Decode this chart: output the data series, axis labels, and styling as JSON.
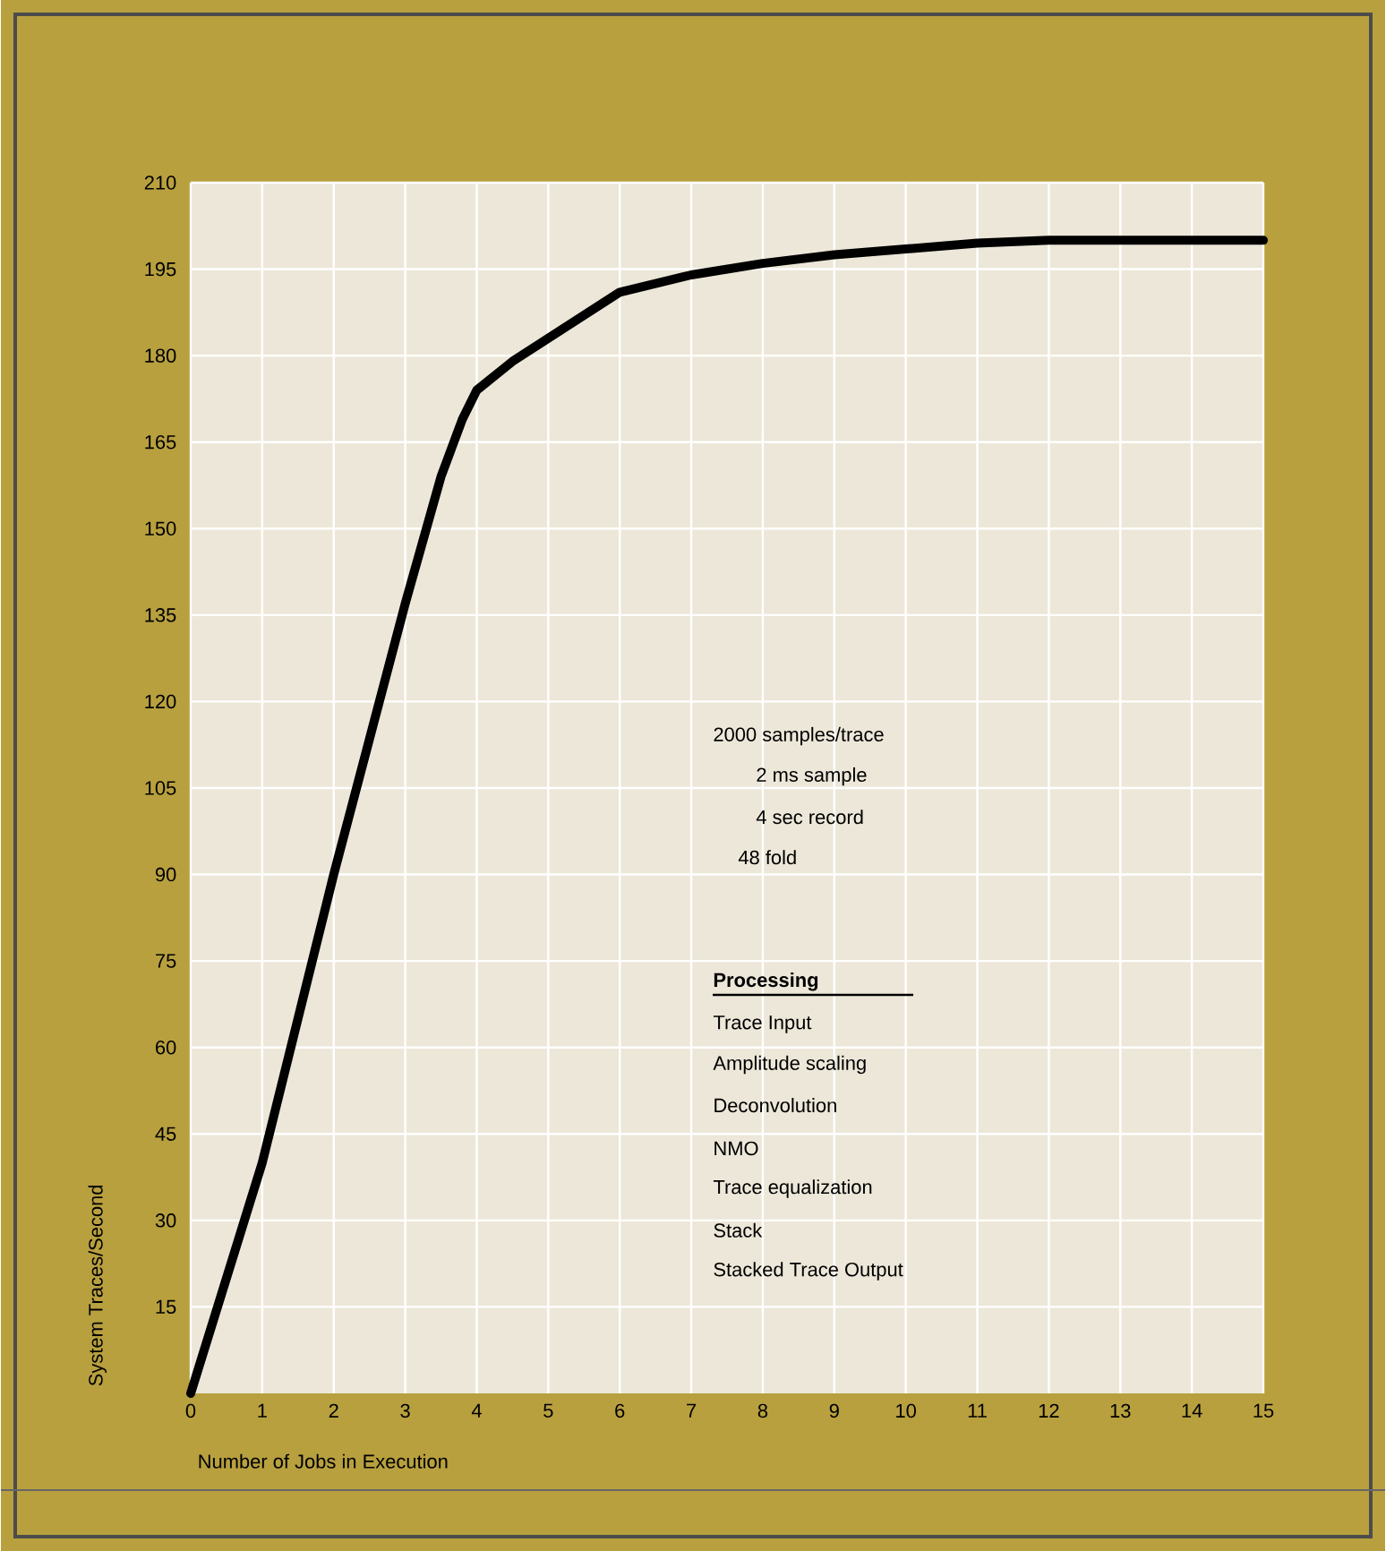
{
  "chart_data": {
    "type": "line",
    "xlabel": "Number of Jobs in Execution",
    "ylabel": "System Traces/Second",
    "x": [
      0,
      1,
      2,
      3,
      3.5,
      3.8,
      4,
      4.5,
      5,
      6,
      7,
      8,
      9,
      10,
      11,
      12,
      13,
      14,
      15
    ],
    "values": [
      0,
      40,
      90,
      137,
      159,
      169,
      174,
      179,
      183,
      191,
      194,
      196,
      197.5,
      198.5,
      199.5,
      200,
      200,
      200,
      200
    ],
    "color": "#000000",
    "xlim": [
      0,
      15
    ],
    "xticks": [
      0,
      1,
      2,
      3,
      4,
      5,
      6,
      7,
      8,
      9,
      10,
      11,
      12,
      13,
      14,
      15
    ],
    "ylim": [
      0,
      210
    ],
    "yticks": [
      15,
      30,
      45,
      60,
      75,
      90,
      105,
      120,
      135,
      150,
      165,
      180,
      195,
      210
    ],
    "grid": true,
    "marker": "none",
    "line_style": "solid",
    "annotations": [
      "2000 samples/trace",
      "2 ms sample",
      "4 sec record",
      "48 fold",
      "Processing",
      "Trace Input",
      "Amplitude scaling",
      "Deconvolution",
      "NMO",
      "Trace equalization",
      "Stack",
      "Stacked Trace Output"
    ]
  }
}
